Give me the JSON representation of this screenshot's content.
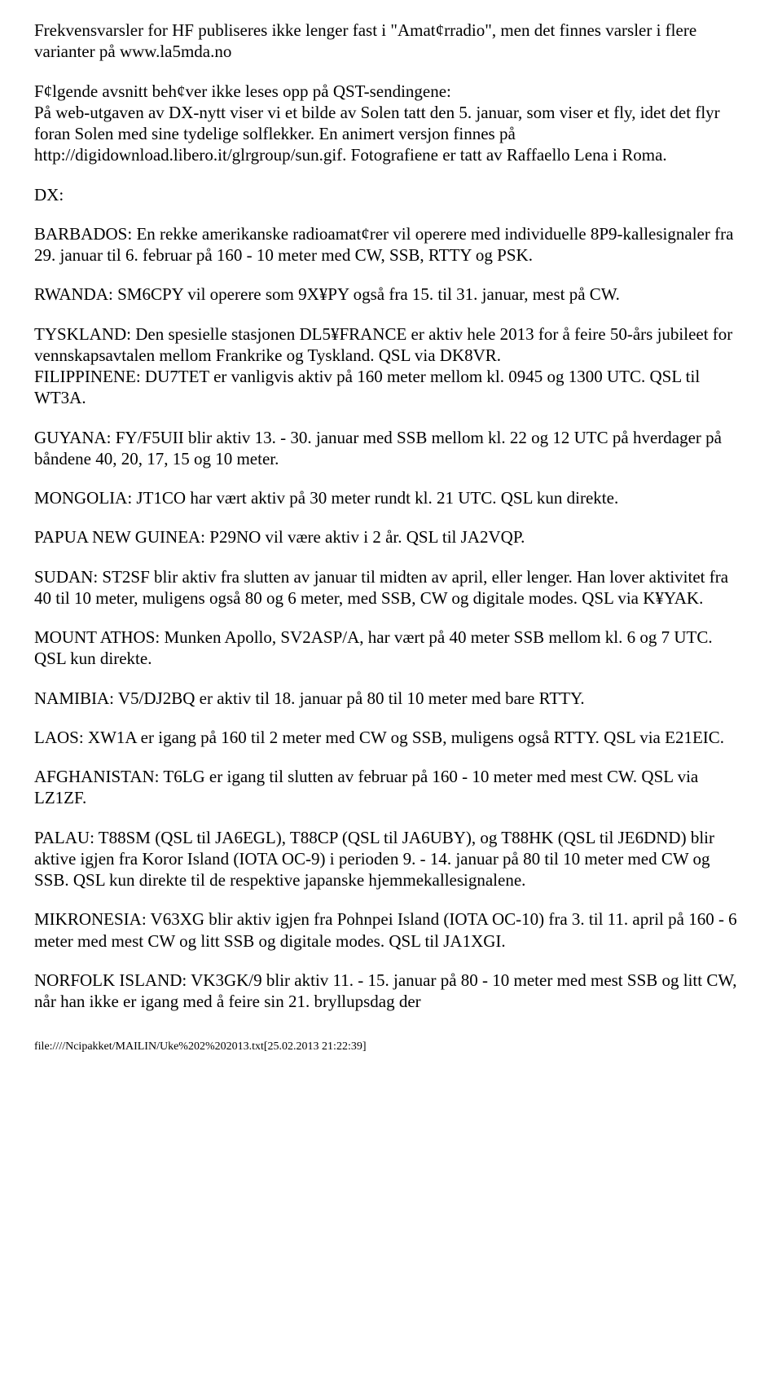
{
  "paragraphs": [
    "Frekvensvarsler for HF publiseres ikke lenger fast i \"Amat¢rradio\", men det finnes varsler i flere varianter på www.la5mda.no",
    "F¢lgende avsnitt beh¢ver ikke leses opp på QST-sendingene:\nPå web-utgaven av DX-nytt viser vi et bilde av Solen tatt den 5. januar, som viser et fly, idet det flyr foran Solen med sine tydelige solflekker. En animert versjon finnes på http://digidownload.libero.it/glrgroup/sun.gif. Fotografiene er tatt av Raffaello Lena i Roma.",
    "DX:",
    "BARBADOS: En rekke amerikanske radioamat¢rer vil operere med individuelle 8P9-kallesignaler fra 29. januar til 6. februar på 160 - 10 meter med CW, SSB, RTTY og PSK.",
    "RWANDA: SM6CPY vil operere som 9X¥PY også fra 15. til 31. januar, mest på CW.",
    "TYSKLAND: Den spesielle stasjonen DL5¥FRANCE er aktiv hele 2013 for å feire 50-års jubileet for vennskapsavtalen mellom Frankrike og Tyskland. QSL via DK8VR.\nFILIPPINENE: DU7TET er vanligvis aktiv på 160 meter mellom kl. 0945 og 1300 UTC. QSL til WT3A.",
    "GUYANA: FY/F5UII blir aktiv 13. - 30. januar med SSB mellom kl. 22 og 12 UTC på hverdager på båndene 40, 20, 17, 15 og 10 meter.",
    "MONGOLIA: JT1CO har vært aktiv på 30 meter rundt kl. 21 UTC. QSL kun direkte.",
    "PAPUA NEW GUINEA: P29NO vil være aktiv i 2 år. QSL til JA2VQP.",
    "SUDAN: ST2SF blir aktiv fra slutten av januar til midten av april, eller lenger. Han lover aktivitet fra 40 til 10 meter, muligens også 80 og 6 meter, med SSB, CW og digitale modes. QSL via K¥YAK.",
    "MOUNT ATHOS: Munken Apollo, SV2ASP/A, har vært på 40 meter SSB mellom kl. 6 og 7 UTC. QSL kun direkte.",
    "NAMIBIA: V5/DJ2BQ er aktiv til 18. januar på 80 til 10 meter med bare RTTY.",
    "LAOS: XW1A er igang på 160 til 2 meter med CW og SSB, muligens også RTTY. QSL via E21EIC.",
    "AFGHANISTAN: T6LG er igang til slutten av februar på 160 - 10 meter med mest CW. QSL via LZ1ZF.",
    "PALAU: T88SM (QSL til JA6EGL), T88CP (QSL til JA6UBY), og T88HK (QSL til JE6DND) blir aktive igjen fra Koror Island (IOTA OC-9) i perioden 9. - 14. januar på 80 til 10 meter med CW og SSB. QSL kun direkte til de respektive japanske hjemmekallesignalene.",
    "MIKRONESIA: V63XG blir aktiv igjen fra Pohnpei Island (IOTA OC-10) fra 3. til 11. april på 160 - 6 meter med mest CW og litt SSB og digitale modes. QSL til JA1XGI.",
    "NORFOLK ISLAND: VK3GK/9 blir aktiv 11. - 15. januar på 80 - 10 meter med mest SSB og litt CW, når han ikke er igang med å feire sin 21. bryllupsdag der"
  ],
  "footer": "file:////Ncipakket/MAILIN/Uke%202%202013.txt[25.02.2013 21:22:39]"
}
